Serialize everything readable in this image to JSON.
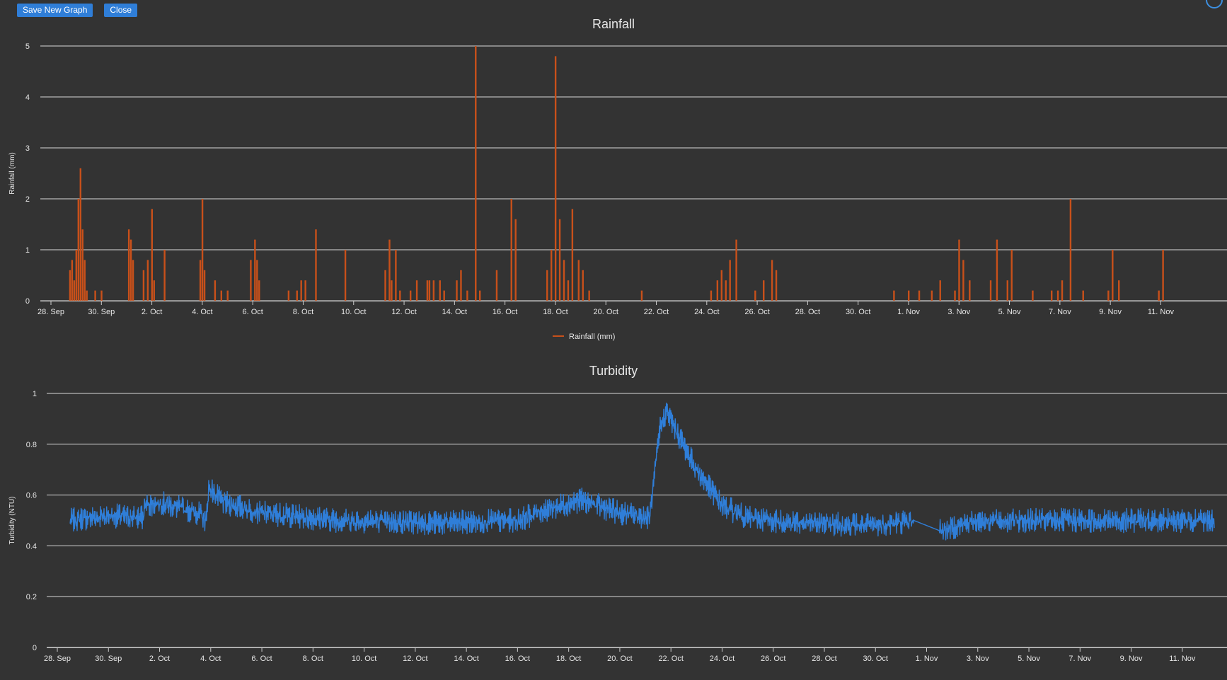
{
  "toolbar": {
    "save_label": "Save New Graph",
    "close_label": "Close"
  },
  "colors": {
    "rainfall": "#c8501a",
    "turbidity": "#2f7ed8",
    "grid": "#d8d8d8",
    "background": "#333333",
    "text": "#e6e6e6"
  },
  "chart_data": [
    {
      "type": "bar",
      "title": "Rainfall",
      "xlabel": "",
      "ylabel": "Rainfall (mm)",
      "ylim": [
        0,
        5
      ],
      "yticks": [
        0,
        1,
        2,
        3,
        4,
        5
      ],
      "xlim": [
        "2023-09-28",
        "2023-11-12T06:00"
      ],
      "xtick_labels": [
        "28. Sep",
        "30. Sep",
        "2. Oct",
        "4. Oct",
        "6. Oct",
        "8. Oct",
        "10. Oct",
        "12. Oct",
        "14. Oct",
        "16. Oct",
        "18. Oct",
        "20. Oct",
        "22. Oct",
        "24. Oct",
        "26. Oct",
        "28. Oct",
        "30. Oct",
        "1. Nov",
        "3. Nov",
        "5. Nov",
        "7. Nov",
        "9. Nov",
        "11. Nov"
      ],
      "legend": {
        "position": "bottom-center",
        "entries": [
          "Rainfall (mm)"
        ]
      },
      "grid": true,
      "series": [
        {
          "name": "Rainfall (mm)",
          "x": [
            "2023-09-28T18:00",
            "2023-09-28T20:00",
            "2023-09-28T22:00",
            "2023-09-29T00:00",
            "2023-09-29T02:00",
            "2023-09-29T04:00",
            "2023-09-29T06:00",
            "2023-09-29T08:00",
            "2023-09-29T10:00",
            "2023-09-29T18:00",
            "2023-09-30T00:00",
            "2023-10-01T02:00",
            "2023-10-01T04:00",
            "2023-10-01T06:00",
            "2023-10-01T16:00",
            "2023-10-01T20:00",
            "2023-10-02T00:00",
            "2023-10-02T02:00",
            "2023-10-02T12:00",
            "2023-10-03T22:00",
            "2023-10-04T00:00",
            "2023-10-04T02:00",
            "2023-10-04T12:00",
            "2023-10-04T18:00",
            "2023-10-05T00:00",
            "2023-10-05T22:00",
            "2023-10-06T02:00",
            "2023-10-06T04:00",
            "2023-10-06T06:00",
            "2023-10-07T10:00",
            "2023-10-07T18:00",
            "2023-10-07T22:00",
            "2023-10-08T02:00",
            "2023-10-08T12:00",
            "2023-10-09T16:00",
            "2023-10-11T06:00",
            "2023-10-11T10:00",
            "2023-10-11T12:00",
            "2023-10-11T16:00",
            "2023-10-11T20:00",
            "2023-10-12T06:00",
            "2023-10-12T12:00",
            "2023-10-12T22:00",
            "2023-10-13T00:00",
            "2023-10-13T04:00",
            "2023-10-13T10:00",
            "2023-10-13T14:00",
            "2023-10-14T02:00",
            "2023-10-14T06:00",
            "2023-10-14T12:00",
            "2023-10-14T20:00",
            "2023-10-15T00:00",
            "2023-10-15T16:00",
            "2023-10-16T06:00",
            "2023-10-16T10:00",
            "2023-10-17T16:00",
            "2023-10-17T20:00",
            "2023-10-18T00:00",
            "2023-10-18T04:00",
            "2023-10-18T08:00",
            "2023-10-18T12:00",
            "2023-10-18T16:00",
            "2023-10-18T22:00",
            "2023-10-19T02:00",
            "2023-10-19T08:00",
            "2023-10-21T10:00",
            "2023-10-24T04:00",
            "2023-10-24T10:00",
            "2023-10-24T14:00",
            "2023-10-24T18:00",
            "2023-10-24T22:00",
            "2023-10-25T04:00",
            "2023-10-25T22:00",
            "2023-10-26T06:00",
            "2023-10-26T14:00",
            "2023-10-26T18:00",
            "2023-10-31T10:00",
            "2023-11-01T00:00",
            "2023-11-01T10:00",
            "2023-11-01T22:00",
            "2023-11-02T06:00",
            "2023-11-02T20:00",
            "2023-11-03T00:00",
            "2023-11-03T04:00",
            "2023-11-03T10:00",
            "2023-11-04T06:00",
            "2023-11-04T12:00",
            "2023-11-04T22:00",
            "2023-11-05T02:00",
            "2023-11-05T22:00",
            "2023-11-06T16:00",
            "2023-11-06T22:00",
            "2023-11-07T02:00",
            "2023-11-07T10:00",
            "2023-11-07T22:00",
            "2023-11-08T22:00",
            "2023-11-09T02:00",
            "2023-11-09T08:00",
            "2023-11-10T22:00",
            "2023-11-11T02:00"
          ],
          "values": [
            0.6,
            0.8,
            0.4,
            1.0,
            2.0,
            2.6,
            1.4,
            0.8,
            0.2,
            0.2,
            0.2,
            1.4,
            1.2,
            0.8,
            0.6,
            0.8,
            1.8,
            0.4,
            1.0,
            0.8,
            2.0,
            0.6,
            0.4,
            0.2,
            0.2,
            0.8,
            1.2,
            0.8,
            0.4,
            0.2,
            0.2,
            0.4,
            0.4,
            1.4,
            1.0,
            0.6,
            1.2,
            0.4,
            1.0,
            0.2,
            0.2,
            0.4,
            0.4,
            0.4,
            0.4,
            0.4,
            0.2,
            0.4,
            0.6,
            0.2,
            5.0,
            0.2,
            0.6,
            2.0,
            1.6,
            0.6,
            1.0,
            4.8,
            1.6,
            0.8,
            0.4,
            1.8,
            0.8,
            0.6,
            0.2,
            0.2,
            0.2,
            0.4,
            0.6,
            0.4,
            0.8,
            1.2,
            0.2,
            0.4,
            0.8,
            0.6,
            0.2,
            0.2,
            0.2,
            0.2,
            0.4,
            0.2,
            1.2,
            0.8,
            0.4,
            0.4,
            1.2,
            0.4,
            1.0,
            0.2,
            0.2,
            0.2,
            0.4,
            2.0,
            0.2,
            0.2,
            1.0,
            0.4,
            0.2,
            1.0
          ]
        }
      ]
    },
    {
      "type": "line",
      "title": "Turbidity",
      "xlabel": "",
      "ylabel": "Turbidity (NTU)",
      "ylim": [
        0,
        1
      ],
      "yticks": [
        0,
        0.2,
        0.4,
        0.6,
        0.8,
        1
      ],
      "ytick_labels": [
        "0",
        "0.2",
        "0.4",
        "0.6",
        "0.8",
        "1"
      ],
      "xlim": [
        "2023-09-28",
        "2023-11-12T06:00"
      ],
      "xtick_labels": [
        "28. Sep",
        "30. Sep",
        "2. Oct",
        "4. Oct",
        "6. Oct",
        "8. Oct",
        "10. Oct",
        "12. Oct",
        "14. Oct",
        "16. Oct",
        "18. Oct",
        "20. Oct",
        "22. Oct",
        "24. Oct",
        "26. Oct",
        "28. Oct",
        "30. Oct",
        "1. Nov",
        "3. Nov",
        "5. Nov",
        "7. Nov",
        "9. Nov",
        "11. Nov"
      ],
      "grid": true,
      "noise_amplitude": 0.03,
      "series": [
        {
          "name": "Turbidity (NTU)",
          "x": [
            "2023-09-28T12:00",
            "2023-09-30T00:00",
            "2023-10-01T09:00",
            "2023-10-01T10:00",
            "2023-10-02T00:00",
            "2023-10-03T12:00",
            "2023-10-03T20:00",
            "2023-10-03T22:00",
            "2023-10-04T12:00",
            "2023-10-06T00:00",
            "2023-10-09T00:00",
            "2023-10-13T00:00",
            "2023-10-16T00:00",
            "2023-10-17T00:00",
            "2023-10-18T12:00",
            "2023-10-20T00:00",
            "2023-10-21T04:00",
            "2023-10-21T14:00",
            "2023-10-21T20:00",
            "2023-10-22T04:00",
            "2023-10-23T00:00",
            "2023-10-24T00:00",
            "2023-10-25T00:00",
            "2023-10-27T00:00",
            "2023-10-30T00:00",
            "2023-10-31T12:00",
            "2023-11-01T12:00",
            "2023-11-03T00:00",
            "2023-11-06T00:00",
            "2023-11-09T00:00",
            "2023-11-11T12:00",
            "2023-11-12T06:00"
          ],
          "values": [
            0.5,
            0.52,
            0.51,
            0.56,
            0.57,
            0.53,
            0.5,
            0.63,
            0.57,
            0.53,
            0.5,
            0.49,
            0.5,
            0.54,
            0.58,
            0.53,
            0.51,
            0.87,
            0.93,
            0.86,
            0.7,
            0.56,
            0.51,
            0.49,
            0.48,
            0.5,
            0.46,
            0.5,
            0.5,
            0.5,
            0.5,
            0.5
          ]
        }
      ]
    }
  ]
}
